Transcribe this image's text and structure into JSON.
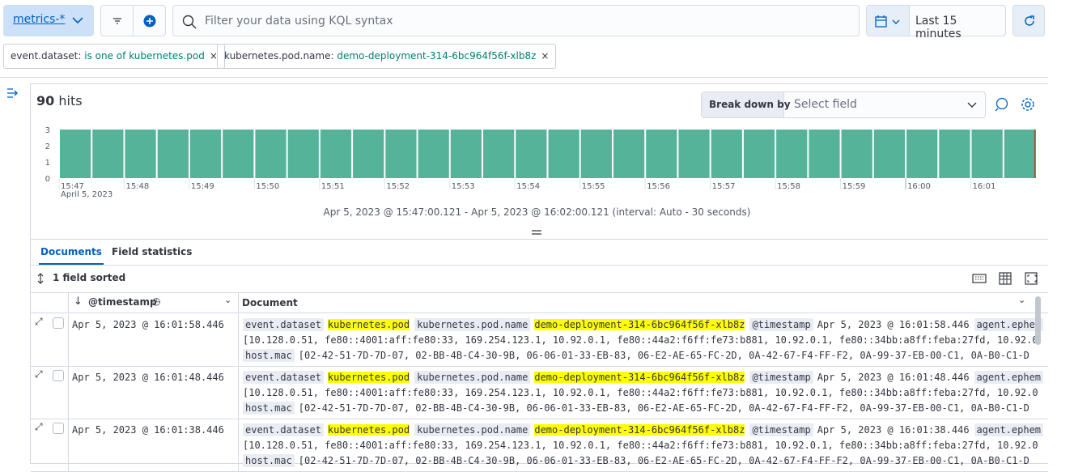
{
  "header": {
    "data_view": "metrics-*",
    "search_placeholder": "Filter your data using KQL syntax",
    "time_picker": "Last 15 minutes"
  },
  "filters": [
    {
      "field": "event.dataset:",
      "operator": "is one of",
      "value": "kubernetes.pod"
    },
    {
      "field": "kubernetes.pod.name:",
      "value": "demo-deployment-314-6bc964f56f-xlb8z"
    }
  ],
  "hits": {
    "count": 90,
    "label": "hits"
  },
  "breakdown": {
    "label": "Break down by",
    "placeholder": "Select field"
  },
  "chart_data": {
    "type": "bar",
    "values": [
      3,
      3,
      3,
      3,
      3,
      3,
      3,
      3,
      3,
      3,
      3,
      3,
      3,
      3,
      3,
      3,
      3,
      3,
      3,
      3,
      3,
      3,
      3,
      3,
      3,
      3,
      3,
      3,
      3,
      3
    ],
    "x_labels": [
      "15:47",
      "15:48",
      "15:49",
      "15:50",
      "15:51",
      "15:52",
      "15:53",
      "15:54",
      "15:55",
      "15:56",
      "15:57",
      "15:58",
      "15:59",
      "16:00",
      "16:01"
    ],
    "x_sublabel": "April 5, 2023",
    "ylim": [
      0,
      3
    ],
    "yticks": [
      0,
      1,
      2,
      3
    ],
    "color": "#54b399"
  },
  "time_range": "Apr 5, 2023 @ 15:47:00.121 - Apr 5, 2023 @ 16:02:00.121 (interval: Auto - 30 seconds)",
  "tabs": [
    "Documents",
    "Field statistics"
  ],
  "sort_label": "1 field sorted",
  "table": {
    "columns": [
      "@timestamp",
      "Document"
    ],
    "rows": [
      {
        "timestamp": "Apr 5, 2023 @ 16:01:58.446",
        "document": [
          [
            {
              "key": "event.dataset",
              "value": "kubernetes.pod"
            },
            {
              "key": "kubernetes.pod.name",
              "value": "demo-deployment-314-6bc964f56f-xlb8z"
            },
            {
              "key": "@timestamp",
              "value": "Apr 5, 2023 @ 16:01:58.446"
            },
            {
              "key": "agent.ephem"
            }
          ],
          [
            {
              "value": "[10.128.0.51, fe80::4001:aff:fe80:33, 169.254.123.1, 10.92.0.1, fe80::44a2:f6ff:fe73:b881, 10.92.0.1, fe80::34bb:a8ff:feba:27fd, 10.92.0"
            }
          ],
          [
            {
              "key": "host.mac",
              "value": "[02-42-51-7D-7D-07, 02-BB-4B-C4-30-9B, 06-06-01-33-EB-83, 06-E2-AE-65-FC-2D, 0A-42-67-F4-FF-F2, 0A-99-37-EB-00-C1, 0A-B0-C1-D"
            }
          ]
        ]
      },
      {
        "timestamp": "Apr 5, 2023 @ 16:01:48.446",
        "document": [
          [
            {
              "key": "event.dataset",
              "value": "kubernetes.pod"
            },
            {
              "key": "kubernetes.pod.name",
              "value": "demo-deployment-314-6bc964f56f-xlb8z"
            },
            {
              "key": "@timestamp",
              "value": "Apr 5, 2023 @ 16:01:48.446"
            },
            {
              "key": "agent.ephem"
            }
          ],
          [
            {
              "value": "[10.128.0.51, fe80::4001:aff:fe80:33, 169.254.123.1, 10.92.0.1, fe80::44a2:f6ff:fe73:b881, 10.92.0.1, fe80::34bb:a8ff:feba:27fd, 10.92.0"
            }
          ],
          [
            {
              "key": "host.mac",
              "value": "[02-42-51-7D-7D-07, 02-BB-4B-C4-30-9B, 06-06-01-33-EB-83, 06-E2-AE-65-FC-2D, 0A-42-67-F4-FF-F2, 0A-99-37-EB-00-C1, 0A-B0-C1-D"
            }
          ]
        ]
      },
      {
        "timestamp": "Apr 5, 2023 @ 16:01:38.446",
        "document": [
          [
            {
              "key": "event.dataset",
              "value": "kubernetes.pod"
            },
            {
              "key": "kubernetes.pod.name",
              "value": "demo-deployment-314-6bc964f56f-xlb8z"
            },
            {
              "key": "@timestamp",
              "value": "Apr 5, 2023 @ 16:01:38.446"
            },
            {
              "key": "agent.ephem"
            }
          ],
          [
            {
              "value": "[10.128.0.51, fe80::4001:aff:fe80:33, 169.254.123.1, 10.92.0.1, fe80::44a2:f6ff:fe73:b881, 10.92.0.1, fe80::34bb:a8ff:feba:27fd, 10.92.0"
            }
          ],
          [
            {
              "key": "host.mac",
              "value": "[02-42-51-7D-7D-07, 02-BB-4B-C4-30-9B, 06-06-01-33-EB-83, 06-E2-AE-65-FC-2D, 0A-42-67-F4-FF-F2, 0A-99-37-EB-00-C1, 0A-B0-C1-D"
            }
          ]
        ]
      }
    ]
  }
}
